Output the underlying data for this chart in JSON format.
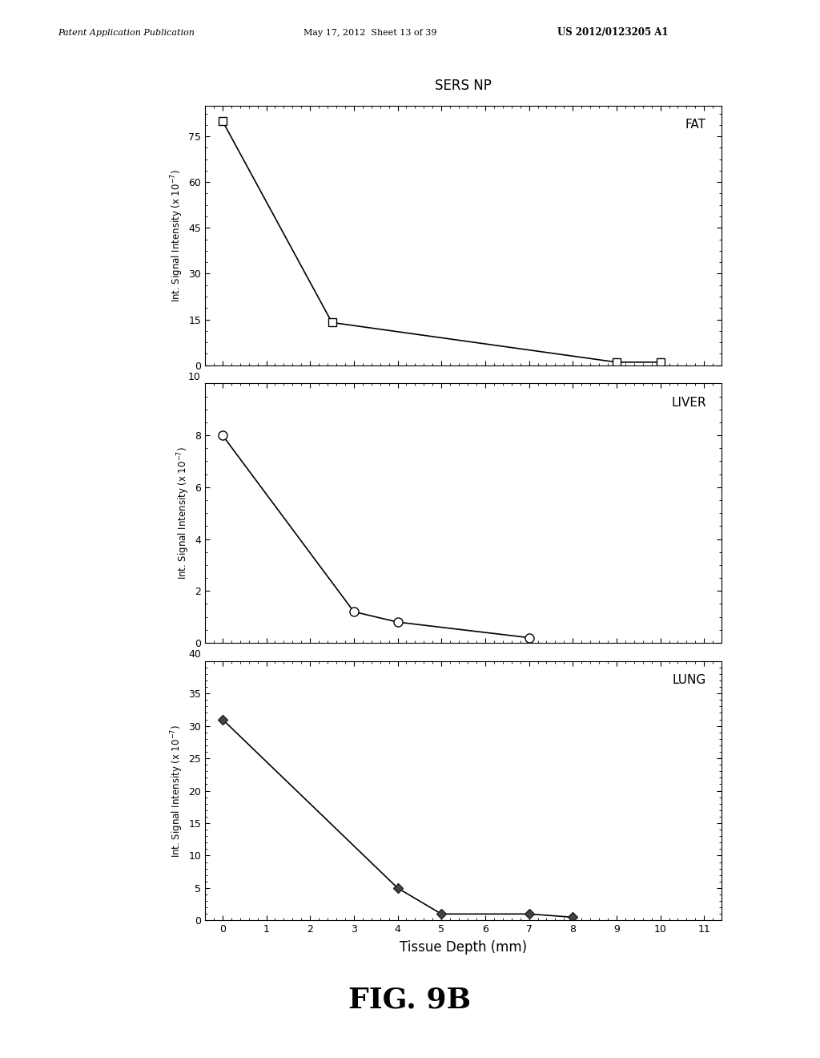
{
  "title": "SERS NP",
  "xlabel": "Tissue Depth (mm)",
  "fig_caption": "FIG. 9B",
  "header_left": "Patent Application Publication",
  "header_center": "May 17, 2012  Sheet 13 of 39",
  "header_right": "US 2012/0123205 A1",
  "fat": {
    "label": "FAT",
    "x": [
      0,
      2.5,
      9,
      10
    ],
    "y": [
      80,
      14,
      1,
      1
    ],
    "ylim": [
      0,
      85
    ],
    "yticks": [
      0,
      15,
      30,
      45,
      60,
      75
    ],
    "marker": "s",
    "markersize": 7,
    "markerfacecolor": "white",
    "markeredgecolor": "black"
  },
  "liver": {
    "label": "LIVER",
    "x": [
      0,
      3,
      4,
      7
    ],
    "y": [
      8,
      1.2,
      0.8,
      0.2
    ],
    "ylim": [
      0,
      10
    ],
    "yticks": [
      0,
      2,
      4,
      6,
      8
    ],
    "ytop_label": "10",
    "marker": "o",
    "markersize": 8,
    "markerfacecolor": "white",
    "markeredgecolor": "black"
  },
  "lung": {
    "label": "LUNG",
    "x": [
      0,
      4,
      5,
      7,
      8
    ],
    "y": [
      31,
      5,
      1,
      1,
      0.5
    ],
    "ylim": [
      0,
      40
    ],
    "yticks": [
      0,
      5,
      10,
      15,
      20,
      25,
      30,
      35
    ],
    "ytop_label": "40",
    "marker": "D",
    "markersize": 6,
    "markerfacecolor": "#444444",
    "markeredgecolor": "#222222"
  },
  "xticks": [
    0,
    1,
    2,
    3,
    4,
    5,
    6,
    7,
    8,
    9,
    10,
    11
  ],
  "xlim": [
    -0.4,
    11.4
  ],
  "line_color": "black",
  "line_width": 1.2,
  "background_color": "#ffffff",
  "ylabel_fontsize": 8.5,
  "tick_fontsize": 9,
  "label_fontsize": 11,
  "title_fontsize": 12
}
